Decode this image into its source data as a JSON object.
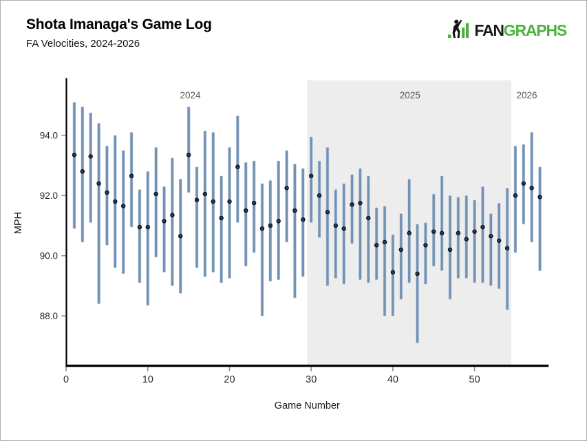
{
  "header": {
    "title": "Shota Imanaga's Game Log",
    "subtitle": "FA Velocities, 2024-2026"
  },
  "logo": {
    "fan": "FAN",
    "graphs": "GRAPHS"
  },
  "styles": {
    "brand_green": "#4cb23d",
    "brand_black": "#191919",
    "bar_color": "#7292b4",
    "bar_edge": "#c6d2e0",
    "dot_fill": "#2c3f56",
    "dot_edge": "#060a10",
    "band_color": "#ededed",
    "axis_color": "#000000",
    "tick_color": "#8c8c8c",
    "tick_label_color": "#262626",
    "axis_title_color": "#1a1a1a",
    "season_label_color": "#565656"
  },
  "chart_data": {
    "type": "range-bar",
    "title": "Shota Imanaga's Game Log",
    "subtitle": "FA Velocities, 2024-2026",
    "xlabel": "Game Number",
    "ylabel": "MPH",
    "grid": "off",
    "xlim": [
      0,
      59
    ],
    "ylim": [
      86.3,
      95.9
    ],
    "x_ticks": [
      {
        "value": 0,
        "label": "0"
      },
      {
        "value": 10,
        "label": "10"
      },
      {
        "value": 20,
        "label": "20"
      },
      {
        "value": 30,
        "label": "30"
      },
      {
        "value": 40,
        "label": "40"
      },
      {
        "value": 50,
        "label": "50"
      }
    ],
    "y_ticks": [
      {
        "value": 88,
        "label": "88.0"
      },
      {
        "value": 90,
        "label": "90.0"
      },
      {
        "value": 92,
        "label": "92.0"
      },
      {
        "value": 94,
        "label": "94.0"
      }
    ],
    "seasons": [
      {
        "label": "2024",
        "start_game": 1,
        "end_game": 29,
        "shaded": false,
        "label_game": 15.2
      },
      {
        "label": "2025",
        "start_game": 30,
        "end_game": 54,
        "shaded": true,
        "label_game": 42.1
      },
      {
        "label": "2026",
        "start_game": 55,
        "end_game": 58,
        "shaded": false,
        "label_game": 56.4
      }
    ],
    "games": [
      {
        "game": 1,
        "lo": 90.9,
        "hi": 95.1,
        "avg": 93.35
      },
      {
        "game": 2,
        "lo": 90.45,
        "hi": 94.95,
        "avg": 92.8
      },
      {
        "game": 3,
        "lo": 91.1,
        "hi": 94.75,
        "avg": 93.3
      },
      {
        "game": 4,
        "lo": 88.4,
        "hi": 94.4,
        "avg": 92.4
      },
      {
        "game": 5,
        "lo": 90.35,
        "hi": 93.65,
        "avg": 92.1
      },
      {
        "game": 6,
        "lo": 89.6,
        "hi": 94.0,
        "avg": 91.8
      },
      {
        "game": 7,
        "lo": 89.4,
        "hi": 93.5,
        "avg": 91.65
      },
      {
        "game": 8,
        "lo": 90.95,
        "hi": 94.1,
        "avg": 92.65
      },
      {
        "game": 9,
        "lo": 89.1,
        "hi": 92.2,
        "avg": 90.95
      },
      {
        "game": 10,
        "lo": 88.35,
        "hi": 92.8,
        "avg": 90.95
      },
      {
        "game": 11,
        "lo": 89.95,
        "hi": 93.6,
        "avg": 92.05
      },
      {
        "game": 12,
        "lo": 89.45,
        "hi": 92.3,
        "avg": 91.15
      },
      {
        "game": 13,
        "lo": 89.0,
        "hi": 93.25,
        "avg": 91.35
      },
      {
        "game": 14,
        "lo": 88.75,
        "hi": 92.55,
        "avg": 90.65
      },
      {
        "game": 15,
        "lo": 92.1,
        "hi": 94.95,
        "avg": 93.35
      },
      {
        "game": 16,
        "lo": 89.6,
        "hi": 92.95,
        "avg": 91.85
      },
      {
        "game": 17,
        "lo": 89.3,
        "hi": 94.15,
        "avg": 92.05
      },
      {
        "game": 18,
        "lo": 89.45,
        "hi": 94.1,
        "avg": 91.8
      },
      {
        "game": 19,
        "lo": 89.1,
        "hi": 92.65,
        "avg": 91.25
      },
      {
        "game": 20,
        "lo": 89.25,
        "hi": 93.6,
        "avg": 91.8
      },
      {
        "game": 21,
        "lo": 91.1,
        "hi": 94.65,
        "avg": 92.95
      },
      {
        "game": 22,
        "lo": 89.65,
        "hi": 93.1,
        "avg": 91.5
      },
      {
        "game": 23,
        "lo": 90.1,
        "hi": 93.15,
        "avg": 91.75
      },
      {
        "game": 24,
        "lo": 88.0,
        "hi": 92.4,
        "avg": 90.9
      },
      {
        "game": 25,
        "lo": 89.15,
        "hi": 92.5,
        "avg": 91.0
      },
      {
        "game": 26,
        "lo": 89.2,
        "hi": 93.15,
        "avg": 91.15
      },
      {
        "game": 27,
        "lo": 90.45,
        "hi": 93.5,
        "avg": 92.25
      },
      {
        "game": 28,
        "lo": 88.6,
        "hi": 93.05,
        "avg": 91.5
      },
      {
        "game": 29,
        "lo": 89.3,
        "hi": 92.9,
        "avg": 91.2
      },
      {
        "game": 30,
        "lo": 91.1,
        "hi": 93.95,
        "avg": 92.65
      },
      {
        "game": 31,
        "lo": 90.6,
        "hi": 93.15,
        "avg": 92.0
      },
      {
        "game": 32,
        "lo": 89.0,
        "hi": 93.6,
        "avg": 91.45
      },
      {
        "game": 33,
        "lo": 89.25,
        "hi": 92.2,
        "avg": 91.0
      },
      {
        "game": 34,
        "lo": 89.05,
        "hi": 92.4,
        "avg": 90.9
      },
      {
        "game": 35,
        "lo": 90.4,
        "hi": 92.7,
        "avg": 91.7
      },
      {
        "game": 36,
        "lo": 89.2,
        "hi": 92.9,
        "avg": 91.75
      },
      {
        "game": 37,
        "lo": 89.1,
        "hi": 92.65,
        "avg": 91.25
      },
      {
        "game": 38,
        "lo": 89.2,
        "hi": 91.6,
        "avg": 90.35
      },
      {
        "game": 39,
        "lo": 88.0,
        "hi": 91.65,
        "avg": 90.45
      },
      {
        "game": 40,
        "lo": 88.0,
        "hi": 90.7,
        "avg": 89.45
      },
      {
        "game": 41,
        "lo": 88.55,
        "hi": 91.4,
        "avg": 90.2
      },
      {
        "game": 42,
        "lo": 89.1,
        "hi": 92.55,
        "avg": 90.75
      },
      {
        "game": 43,
        "lo": 87.1,
        "hi": 91.05,
        "avg": 89.4
      },
      {
        "game": 44,
        "lo": 89.05,
        "hi": 91.1,
        "avg": 90.35
      },
      {
        "game": 45,
        "lo": 89.65,
        "hi": 92.05,
        "avg": 90.8
      },
      {
        "game": 46,
        "lo": 89.5,
        "hi": 92.65,
        "avg": 90.75
      },
      {
        "game": 47,
        "lo": 88.55,
        "hi": 92.0,
        "avg": 90.2
      },
      {
        "game": 48,
        "lo": 89.25,
        "hi": 91.95,
        "avg": 90.75
      },
      {
        "game": 49,
        "lo": 89.25,
        "hi": 92.0,
        "avg": 90.55
      },
      {
        "game": 50,
        "lo": 89.1,
        "hi": 91.85,
        "avg": 90.8
      },
      {
        "game": 51,
        "lo": 89.1,
        "hi": 92.3,
        "avg": 90.95
      },
      {
        "game": 52,
        "lo": 89.0,
        "hi": 91.4,
        "avg": 90.65
      },
      {
        "game": 53,
        "lo": 88.9,
        "hi": 91.75,
        "avg": 90.5
      },
      {
        "game": 54,
        "lo": 88.2,
        "hi": 92.25,
        "avg": 90.25
      },
      {
        "game": 55,
        "lo": 90.1,
        "hi": 93.65,
        "avg": 92.0
      },
      {
        "game": 56,
        "lo": 91.05,
        "hi": 93.7,
        "avg": 92.4
      },
      {
        "game": 57,
        "lo": 90.45,
        "hi": 94.1,
        "avg": 92.25
      },
      {
        "game": 58,
        "lo": 89.5,
        "hi": 92.95,
        "avg": 91.95
      }
    ]
  }
}
